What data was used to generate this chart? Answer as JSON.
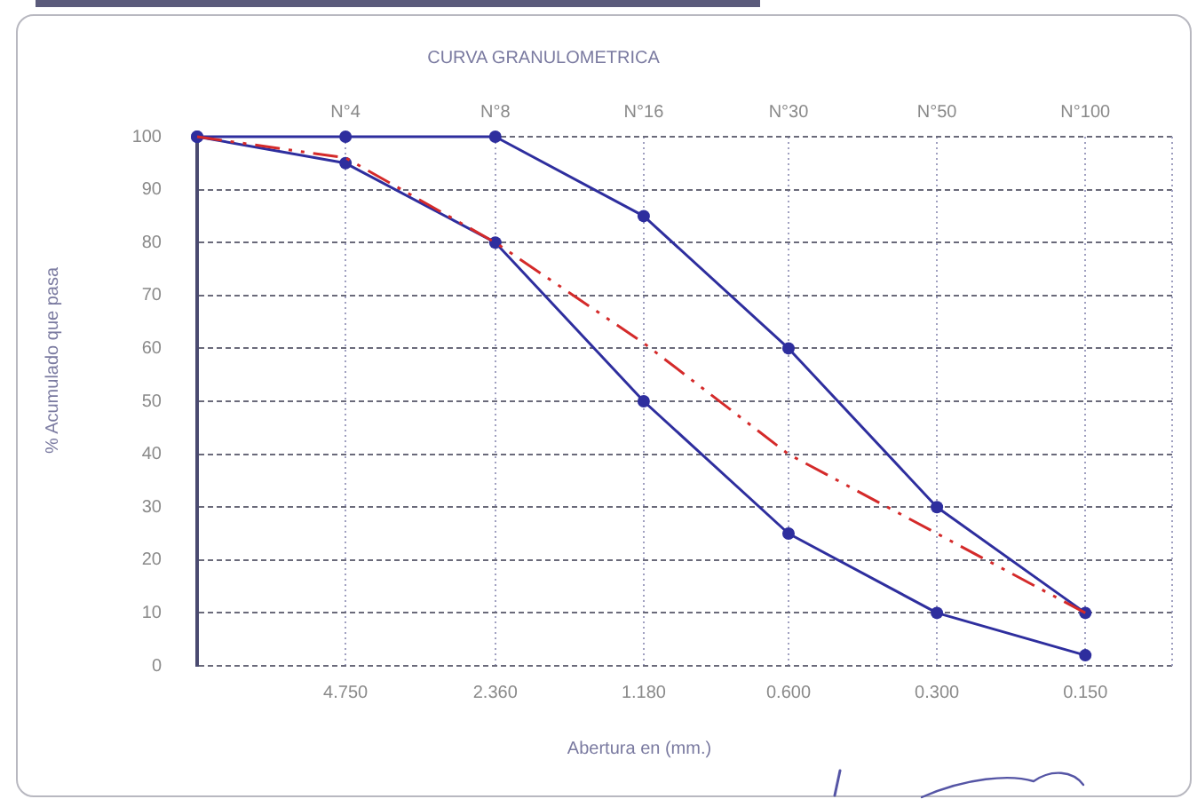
{
  "chart_data": {
    "type": "line",
    "title": "CURVA GRANULOMETRICA",
    "xlabel": "Abertura en (mm.)",
    "ylabel": "% Acumulado que pasa",
    "x": [
      9.5,
      4.75,
      2.36,
      1.18,
      0.6,
      0.3,
      0.15
    ],
    "series": [
      {
        "color": "#2e2e9e",
        "values": [
          100,
          100,
          100,
          85,
          60,
          30,
          10
        ]
      },
      {
        "color": "#2e2e9e",
        "values": [
          100,
          95,
          80,
          50,
          25,
          10,
          2
        ]
      },
      {
        "color": "#d42a2a",
        "values": [
          100,
          96,
          80,
          61,
          40,
          25,
          10
        ],
        "marker": "none",
        "line_style": "dashed"
      }
    ],
    "log": "x",
    "xlim": [
      9.5,
      0.1
    ],
    "xticks": [
      {
        "value": 4.75,
        "label": "4.750"
      },
      {
        "value": 2.36,
        "label": "2.360"
      },
      {
        "value": 1.18,
        "label": "1.180"
      },
      {
        "value": 0.6,
        "label": "0.600"
      },
      {
        "value": 0.3,
        "label": "0.300"
      },
      {
        "value": 0.15,
        "label": "0.150"
      }
    ],
    "ylim": [
      0,
      100
    ],
    "yticks": [
      0,
      10,
      20,
      30,
      40,
      50,
      60,
      70,
      80,
      90,
      100
    ],
    "grid": true,
    "marker": "circle",
    "annotations": [
      "N°4",
      "N°8",
      "N°16",
      "N°30",
      "N°50",
      "N°100"
    ]
  }
}
